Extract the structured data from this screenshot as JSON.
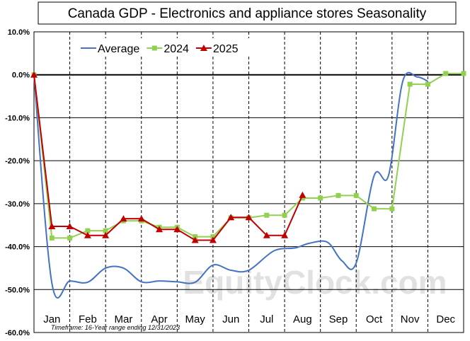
{
  "chart_data": {
    "type": "line",
    "title": "Canada  GDP - Electronics and appliance stores Seasonality",
    "ylim": [
      -60,
      10
    ],
    "y_ticks": [
      "10.0%",
      "0.0%",
      "-10.0%",
      "-20.0%",
      "-30.0%",
      "-40.0%",
      "-50.0%",
      "-60.0%"
    ],
    "y_tick_values": [
      10,
      0,
      -10,
      -20,
      -30,
      -40,
      -50,
      -60
    ],
    "categories": [
      "Jan",
      "Feb",
      "Mar",
      "Apr",
      "May",
      "Jun",
      "Jul",
      "Aug",
      "Sep",
      "Oct",
      "Nov",
      "Dec"
    ],
    "grid": true,
    "legend_position": "top-left",
    "footnote": "Timeframe: 16-Year range ending 12/31/2023",
    "watermark": "EquityClock.com",
    "series": [
      {
        "name": "Average",
        "color": "#4472c4",
        "marker": "none",
        "smooth": true,
        "points": [
          [
            0.0,
            0
          ],
          [
            0.5,
            -48.5
          ],
          [
            1.0,
            -48.0
          ],
          [
            1.5,
            -48.3
          ],
          [
            2.0,
            -45.0
          ],
          [
            2.5,
            -45.0
          ],
          [
            3.0,
            -48.2
          ],
          [
            3.5,
            -48.0
          ],
          [
            4.0,
            -48.2
          ],
          [
            4.5,
            -48.3
          ],
          [
            5.0,
            -44.3
          ],
          [
            5.5,
            -45.5
          ],
          [
            6.0,
            -45.5
          ],
          [
            6.7,
            -41.0
          ],
          [
            7.3,
            -40.3
          ],
          [
            7.7,
            -39.2
          ],
          [
            8.2,
            -39.0
          ],
          [
            8.6,
            -43.3
          ],
          [
            9.0,
            -43.8
          ],
          [
            9.5,
            -23.5
          ],
          [
            9.9,
            -23.5
          ],
          [
            10.3,
            -1.5
          ],
          [
            10.7,
            -0.5
          ],
          [
            11.0,
            -1.5
          ]
        ]
      },
      {
        "name": "2024",
        "color": "#92d050",
        "marker": "square",
        "smooth": false,
        "points": [
          [
            0.0,
            0
          ],
          [
            0.5,
            -38.0
          ],
          [
            1.0,
            -38.0
          ],
          [
            1.5,
            -36.3
          ],
          [
            2.0,
            -36.3
          ],
          [
            2.5,
            -34.0
          ],
          [
            3.0,
            -34.0
          ],
          [
            3.5,
            -35.5
          ],
          [
            4.0,
            -35.5
          ],
          [
            4.5,
            -37.7
          ],
          [
            5.0,
            -37.7
          ],
          [
            5.5,
            -33.3
          ],
          [
            6.0,
            -33.3
          ],
          [
            6.5,
            -32.7
          ],
          [
            7.0,
            -32.7
          ],
          [
            7.5,
            -28.7
          ],
          [
            8.0,
            -28.7
          ],
          [
            8.5,
            -28.1
          ],
          [
            9.0,
            -28.1
          ],
          [
            9.5,
            -31.2
          ],
          [
            10.0,
            -31.2
          ],
          [
            10.5,
            -2.2
          ],
          [
            11.0,
            -2.2
          ],
          [
            11.5,
            0.3
          ],
          [
            12.0,
            0.3
          ]
        ]
      },
      {
        "name": "2025",
        "color": "#c00000",
        "marker": "triangle",
        "smooth": false,
        "points": [
          [
            0.0,
            0
          ],
          [
            0.5,
            -35.3
          ],
          [
            1.0,
            -35.3
          ],
          [
            1.5,
            -37.4
          ],
          [
            2.0,
            -37.4
          ],
          [
            2.5,
            -33.5
          ],
          [
            3.0,
            -33.5
          ],
          [
            3.5,
            -36.0
          ],
          [
            4.0,
            -36.0
          ],
          [
            4.5,
            -38.5
          ],
          [
            5.0,
            -38.5
          ],
          [
            5.5,
            -33.2
          ],
          [
            6.0,
            -33.2
          ],
          [
            6.5,
            -37.4
          ],
          [
            7.0,
            -37.4
          ],
          [
            7.5,
            -28.0
          ]
        ]
      }
    ]
  }
}
